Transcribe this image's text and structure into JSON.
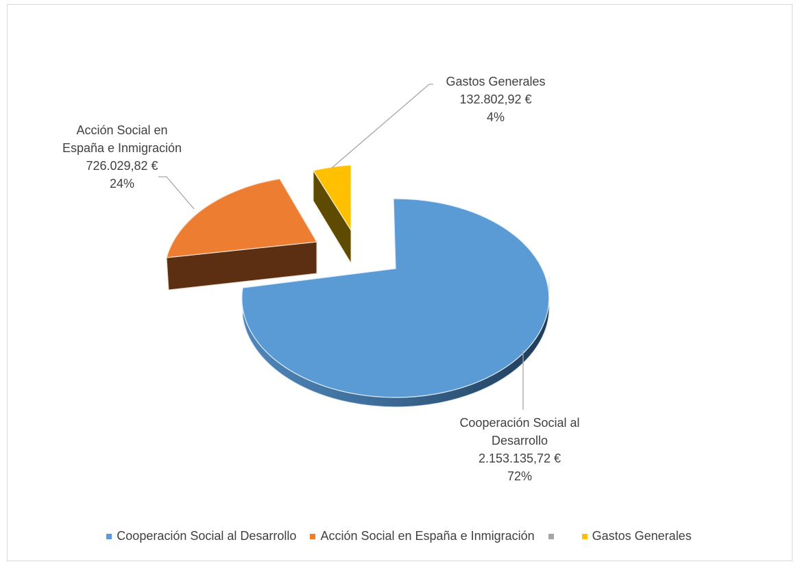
{
  "chart_data": {
    "type": "pie",
    "title": "",
    "slices": [
      {
        "name": "Cooperación Social al Desarrollo",
        "value": 2153135.72,
        "value_label": "2.153.135,72 €",
        "percent_label": "72%",
        "color": "#5b9bd5",
        "label_lines": [
          "Cooperación Social al",
          "Desarrollo"
        ]
      },
      {
        "name": "Acción Social en España e Inmigración",
        "value": 726029.82,
        "value_label": "726.029,82 €",
        "percent_label": "24%",
        "color": "#ed7d31",
        "label_lines": [
          "Acción Social en",
          "España e Inmigración"
        ]
      },
      {
        "name": "",
        "value": 0,
        "value_label": "",
        "percent_label": "",
        "color": "#a5a5a5",
        "label_lines": []
      },
      {
        "name": "Gastos Generales",
        "value": 132802.92,
        "value_label": "132.802,92 €",
        "percent_label": "4%",
        "color": "#ffc000",
        "label_lines": [
          "Gastos Generales"
        ]
      }
    ],
    "style": "3d-exploded",
    "legend_position": "bottom"
  }
}
